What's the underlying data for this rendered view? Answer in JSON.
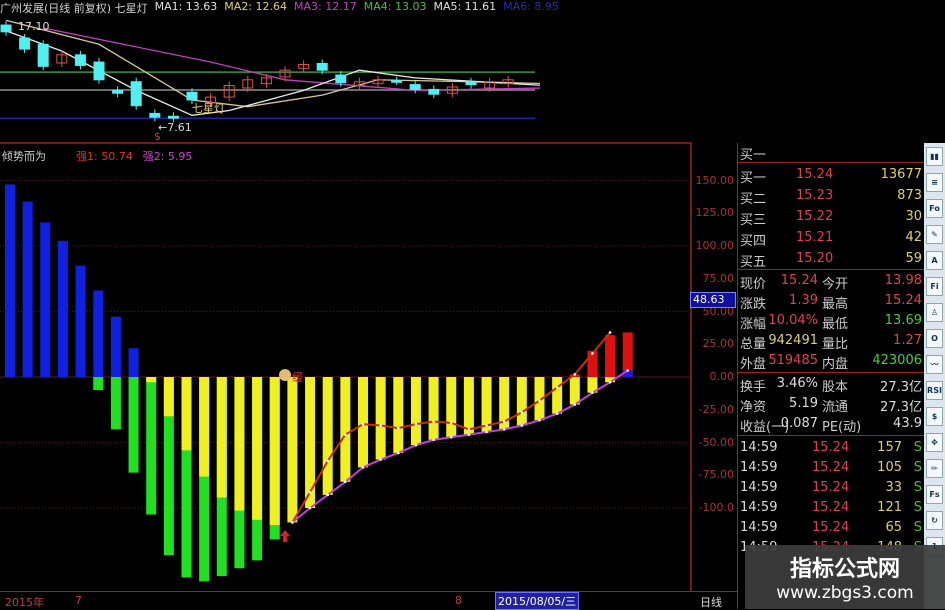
{
  "header": {
    "title": "广州发展(日线 前复权) 七星灯",
    "ma": [
      {
        "label": "MA1: 13.63",
        "color": "#e0e0e0"
      },
      {
        "label": "MA2: 12.64",
        "color": "#e0d070"
      },
      {
        "label": "MA3: 12.17",
        "color": "#c040c0"
      },
      {
        "label": "MA4: 13.03",
        "color": "#40c040"
      },
      {
        "label": "MA5: 11.61",
        "color": "#e0e0e0"
      },
      {
        "label": "MA6: 8.95",
        "color": "#2030a0"
      }
    ]
  },
  "price_panel": {
    "high_label": "17.10",
    "low_label": "←7.61",
    "signal_label": "七星灯",
    "signal_marker": "$",
    "candles": [
      [
        17.3,
        16.6
      ],
      [
        15.95,
        14.8
      ],
      [
        15.3,
        13.0
      ],
      [
        13.35,
        14.2
      ],
      [
        14.2,
        13.1
      ],
      [
        13.45,
        11.6
      ],
      [
        10.5,
        10.2
      ],
      [
        11.4,
        8.9
      ],
      [
        8.1,
        7.7
      ],
      [
        7.8,
        7.6
      ],
      [
        10.3,
        9.5
      ],
      [
        9.2,
        9.8
      ],
      [
        9.8,
        11.0
      ],
      [
        10.75,
        11.6
      ],
      [
        11.2,
        11.8
      ],
      [
        11.9,
        12.6
      ],
      [
        12.8,
        13.2
      ],
      [
        13.3,
        12.6
      ],
      [
        12.1,
        11.3
      ],
      [
        11.0,
        11.4
      ],
      [
        11.2,
        11.6
      ],
      [
        11.5,
        11.5
      ],
      [
        11.1,
        10.6
      ],
      [
        10.6,
        10.1
      ],
      [
        10.2,
        10.85
      ],
      [
        11.4,
        11.1
      ],
      [
        10.75,
        11.4
      ],
      [
        11.2,
        11.6
      ]
    ],
    "ma_lines": [
      {
        "color": "#c040c0",
        "points": [
          [
            2,
            17.0
          ],
          [
            11,
            13.45
          ],
          [
            15,
            11.6
          ],
          [
            22,
            10.5
          ],
          [
            29,
            10.75
          ]
        ]
      },
      {
        "color": "#d8c890",
        "points": [
          [
            0,
            17.8
          ],
          [
            5,
            15.3
          ],
          [
            10,
            9.5
          ],
          [
            13,
            8.8
          ],
          [
            17,
            10.0
          ],
          [
            20,
            11.6
          ],
          [
            25,
            11.4
          ],
          [
            29,
            11.2
          ]
        ]
      },
      {
        "color": "#e8e8e8",
        "points": [
          [
            0,
            16.7
          ],
          [
            3,
            14.6
          ],
          [
            7,
            10.5
          ],
          [
            10,
            7.9
          ],
          [
            12,
            8.4
          ],
          [
            16,
            10.5
          ],
          [
            19,
            12.6
          ],
          [
            22,
            11.8
          ],
          [
            29,
            11.0
          ]
        ]
      }
    ],
    "levels": [
      {
        "color": "#3a9a3a",
        "price": 12.4
      },
      {
        "color": "#909090",
        "price": 10.54
      },
      {
        "color": "#2020b0",
        "price": 7.6
      }
    ]
  },
  "indicator": {
    "name": "倾势而为",
    "s1": "强1: 50.74",
    "s2": "强2: 5.95",
    "marker_label": "48.63",
    "buy_label": "缓",
    "chart_data": {
      "type": "bar",
      "ylim": [
        -160,
        160
      ],
      "yticks": [
        "150.00",
        "125.00",
        "100.00",
        "75.00",
        "50.00",
        "25.00",
        "0.00",
        "-25.00",
        "-50.00",
        "-75.00",
        "-100.0"
      ],
      "blue": [
        147,
        134,
        118,
        104,
        85,
        66,
        46,
        22,
        0,
        0,
        0,
        0,
        0,
        0,
        0,
        0,
        0,
        0,
        0,
        0,
        0,
        0,
        0,
        0,
        0,
        0,
        0,
        0,
        0,
        0,
        0,
        0,
        0,
        0,
        0,
        5
      ],
      "green": [
        0,
        0,
        0,
        0,
        0,
        -10,
        -40,
        -73,
        -105,
        -136,
        -153,
        -156,
        -152,
        -146,
        -140,
        -124,
        0,
        0,
        0,
        0,
        0,
        0,
        0,
        0,
        0,
        0,
        0,
        0,
        0,
        0,
        0,
        0,
        0,
        0,
        0,
        0
      ],
      "yellow": [
        0,
        0,
        0,
        0,
        0,
        0,
        0,
        0,
        -4,
        -30,
        -56,
        -76,
        -92,
        -102,
        -109,
        -113,
        -111,
        -100,
        -90,
        -80,
        -69,
        -63,
        -58,
        -52,
        -48,
        -46,
        -44,
        -42,
        -40,
        -37,
        -33,
        -28,
        -21,
        -12,
        -4,
        0
      ],
      "red": [
        0,
        0,
        0,
        0,
        0,
        0,
        0,
        0,
        0,
        0,
        0,
        0,
        0,
        0,
        0,
        0,
        0,
        0,
        0,
        0,
        0,
        0,
        0,
        0,
        0,
        0,
        0,
        0,
        0,
        0,
        0,
        0,
        2,
        20,
        32,
        34
      ],
      "purple_line": {
        "start": 16,
        "values": [
          -111,
          -100,
          -90,
          -80,
          -69,
          -63,
          -58,
          -52,
          -48,
          -46,
          -44,
          -42,
          -40,
          -37,
          -33,
          -28,
          -21,
          -12,
          -4,
          5
        ]
      },
      "orange_line": {
        "start": 16,
        "values": [
          -111,
          -88,
          -64,
          -44,
          -36,
          -37,
          -39,
          -36,
          -34,
          -35,
          -40,
          -37,
          -34,
          -27,
          -18,
          -8,
          2,
          18,
          34
        ]
      }
    }
  },
  "bottom_axis": {
    "year": "2015年",
    "m7": "7",
    "m8": "8",
    "date": "2015/08/05/三",
    "period": "日线"
  },
  "quote": {
    "header": "买一",
    "bids": [
      {
        "label": "买一",
        "price": "15.24",
        "vol": "13677"
      },
      {
        "label": "买二",
        "price": "15.23",
        "vol": "873"
      },
      {
        "label": "买三",
        "price": "15.22",
        "vol": "30"
      },
      {
        "label": "买四",
        "price": "15.21",
        "vol": "42"
      },
      {
        "label": "买五",
        "price": "15.20",
        "vol": "59"
      }
    ],
    "stats": [
      {
        "l1": "现价",
        "v1": "15.24",
        "c1": "#e04050",
        "l2": "今开",
        "v2": "13.98",
        "c2": "#e04050"
      },
      {
        "l1": "涨跌",
        "v1": "1.39",
        "c1": "#e04050",
        "l2": "最高",
        "v2": "15.24",
        "c2": "#e04050"
      },
      {
        "l1": "涨幅",
        "v1": "10.04%",
        "c1": "#e04050",
        "l2": "最低",
        "v2": "13.69",
        "c2": "#40d040"
      },
      {
        "l1": "总量",
        "v1": "942491",
        "c1": "#e0d060",
        "l2": "量比",
        "v2": "1.27",
        "c2": "#e04050"
      },
      {
        "l1": "外盘",
        "v1": "519485",
        "c1": "#e04050",
        "l2": "内盘",
        "v2": "423006",
        "c2": "#40d040"
      }
    ],
    "fund": [
      {
        "l1": "换手",
        "v1": "3.46%",
        "l2": "股本",
        "v2": "27.3亿"
      },
      {
        "l1": "净资",
        "v1": "5.19",
        "l2": "流通",
        "v2": "27.3亿"
      },
      {
        "l1": "收益(一)",
        "v1": "0.087",
        "l2": "PE(动)",
        "v2": "43.9"
      }
    ],
    "trades": [
      {
        "t": "14:59",
        "p": "15.24",
        "v": "157",
        "s": "S"
      },
      {
        "t": "14:59",
        "p": "15.24",
        "v": "105",
        "s": "S"
      },
      {
        "t": "14:59",
        "p": "15.24",
        "v": "33",
        "s": "S"
      },
      {
        "t": "14:59",
        "p": "15.24",
        "v": "121",
        "s": "S"
      },
      {
        "t": "14:59",
        "p": "15.24",
        "v": "65",
        "s": "S"
      },
      {
        "t": "14:59",
        "p": "15.24",
        "v": "148",
        "s": "S"
      }
    ]
  },
  "toolbar": [
    {
      "icon": "candlestick-icon",
      "label": "▮▮"
    },
    {
      "icon": "list-icon",
      "label": "≡"
    },
    {
      "icon": "f10-icon",
      "label": "Fo"
    },
    {
      "icon": "notes-icon",
      "label": "✎"
    },
    {
      "icon": "info-icon",
      "label": "A"
    },
    {
      "icon": "finance-icon",
      "label": "Fi"
    },
    {
      "icon": "person-icon",
      "label": "♙"
    },
    {
      "icon": "circle-icon",
      "label": "O"
    },
    {
      "icon": "wave-icon",
      "label": "〰"
    },
    {
      "icon": "rsi-icon",
      "label": "RSI"
    },
    {
      "icon": "dollar-icon",
      "label": "$"
    },
    {
      "icon": "move-icon",
      "label": "✥"
    },
    {
      "icon": "pencil-icon",
      "label": "✏"
    },
    {
      "icon": "fs-icon",
      "label": "Fs"
    },
    {
      "icon": "refresh-icon",
      "label": "↻"
    },
    {
      "icon": "page-icon",
      "label": "1"
    }
  ],
  "watermark": {
    "title": "指标公式网",
    "url": "www.zbgs3.com"
  }
}
